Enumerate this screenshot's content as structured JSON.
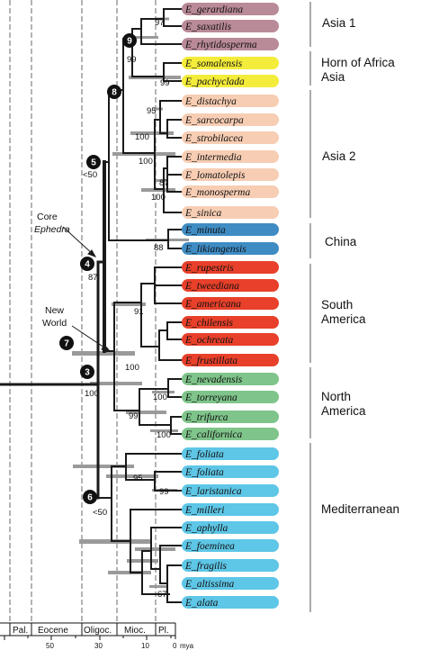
{
  "taxa": [
    {
      "name": "E_gerardiana",
      "color": "#b98a97"
    },
    {
      "name": "E_saxatilis",
      "color": "#b98a97"
    },
    {
      "name": "E_rhytidosperma",
      "color": "#b98a97"
    },
    {
      "name": "E_somalensis",
      "color": "#f4ec3a"
    },
    {
      "name": "E_pachyclada",
      "color": "#f4ec3a"
    },
    {
      "name": "E_distachya",
      "color": "#f7cdb3"
    },
    {
      "name": "E_sarcocarpa",
      "color": "#f7cdb3"
    },
    {
      "name": "E_strobilacea",
      "color": "#f7cdb3"
    },
    {
      "name": "E_intermedia",
      "color": "#f7cdb3"
    },
    {
      "name": "E_lomatolepis",
      "color": "#f7cdb3"
    },
    {
      "name": "E_monosperma",
      "color": "#f7cdb3"
    },
    {
      "name": "E_sinica",
      "color": "#f7cdb3"
    },
    {
      "name": "E_minuta",
      "color": "#3f8cc4"
    },
    {
      "name": "E_likiangensis",
      "color": "#3f8cc4"
    },
    {
      "name": "E_rupestris",
      "color": "#e8402a"
    },
    {
      "name": "E_tweediana",
      "color": "#e8402a"
    },
    {
      "name": "E_americana",
      "color": "#e8402a"
    },
    {
      "name": "E_chilensis",
      "color": "#e8402a"
    },
    {
      "name": "E_ochreata",
      "color": "#e8402a"
    },
    {
      "name": "E_frustillata",
      "color": "#e8402a"
    },
    {
      "name": "E_nevadensis",
      "color": "#7fc48a"
    },
    {
      "name": "E_torreyana",
      "color": "#7fc48a"
    },
    {
      "name": "E_trifurca",
      "color": "#7fc48a"
    },
    {
      "name": "E_californica",
      "color": "#7fc48a"
    },
    {
      "name": "E_foliata",
      "color": "#5ec6e6"
    },
    {
      "name": "E_foliata",
      "color": "#5ec6e6"
    },
    {
      "name": "E_laristanica",
      "color": "#5ec6e6"
    },
    {
      "name": "E_milleri",
      "color": "#5ec6e6"
    },
    {
      "name": "E_aphylla",
      "color": "#5ec6e6"
    },
    {
      "name": "E_foeminea",
      "color": "#5ec6e6"
    },
    {
      "name": "E_fragilis",
      "color": "#5ec6e6"
    },
    {
      "name": "E_altissima",
      "color": "#5ec6e6"
    },
    {
      "name": "E_alata",
      "color": "#5ec6e6"
    }
  ],
  "regions": [
    {
      "lines": [
        "Asia 1"
      ]
    },
    {
      "lines": [
        "Horn of Africa",
        "Asia"
      ]
    },
    {
      "lines": [
        "Asia 2"
      ]
    },
    {
      "lines": [
        "China"
      ]
    },
    {
      "lines": [
        "South",
        "America"
      ]
    },
    {
      "lines": [
        "North",
        "America"
      ]
    },
    {
      "lines": [
        "Mediterranean"
      ]
    }
  ],
  "nodes": [
    "9",
    "8",
    "5",
    "4",
    "7",
    "3",
    "6"
  ],
  "node5_support": "<50",
  "node6_support": "<50",
  "support_values": [
    "97",
    "99",
    "99",
    "95",
    "100",
    "100",
    "100",
    "87",
    "88",
    "87",
    "91",
    "100",
    "100",
    "99",
    "100",
    "95",
    "99",
    "67",
    "100"
  ],
  "annotations": {
    "core_line1": "Core",
    "core_line2": "Ephedra",
    "new_world_line1": "New",
    "new_world_line2": "World"
  },
  "timescale": {
    "epochs": [
      "Pal.",
      "Eocene",
      "Oligoc.",
      "Mioc.",
      "Pl."
    ],
    "ticks": [
      "50",
      "30",
      "10",
      "0"
    ],
    "unit": "mya"
  }
}
